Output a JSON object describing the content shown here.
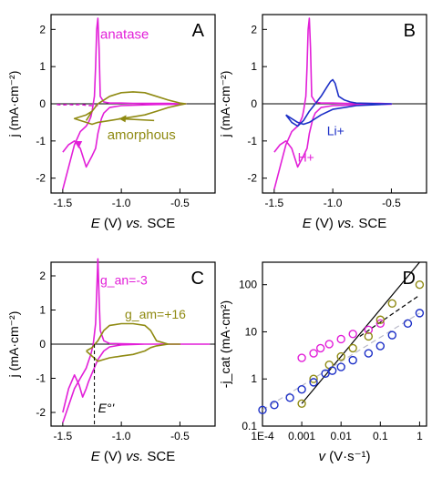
{
  "colors": {
    "anatase": "#e21fd8",
    "amorphous": "#8f8a12",
    "li": "#1c2fc7",
    "axis": "#000000",
    "zero": "#000000"
  },
  "chart_data": [
    {
      "id": "A",
      "type": "line",
      "panel_label": "A",
      "xlabel_parts": [
        "E",
        " (V) ",
        "vs.",
        " SCE"
      ],
      "ylabel": "j (mA·cm⁻²)",
      "xlim": [
        -1.6,
        -0.2
      ],
      "ylim": [
        -2.4,
        2.4
      ],
      "xticks": [
        -1.5,
        -1.0,
        -0.5
      ],
      "xtick_labels": [
        "-1.5",
        "-1.0",
        "-0.5"
      ],
      "yticks": [
        -2,
        -1,
        0,
        1,
        2
      ],
      "ytick_labels": [
        "-2",
        "-1",
        "0",
        "1",
        "2"
      ],
      "annotations": [
        "anatase",
        "amorphous"
      ],
      "series": [
        {
          "color": "anatase",
          "x": [
            -1.5,
            -1.45,
            -1.4,
            -1.35,
            -1.3,
            -1.28,
            -1.26,
            -1.25,
            -1.23,
            -1.22,
            -1.21,
            -1.2,
            -1.19,
            -1.18,
            -1.15,
            -1.1,
            -1.0,
            -0.9,
            -0.8,
            -0.7,
            -0.6,
            -0.5,
            -0.45,
            -0.5,
            -0.7,
            -1.0,
            -1.1,
            -1.15,
            -1.17,
            -1.2,
            -1.22,
            -1.25,
            -1.3,
            -1.35,
            -1.4,
            -1.45,
            -1.5
          ],
          "y": [
            -2.3,
            -1.7,
            -1.1,
            -0.75,
            -0.6,
            -0.5,
            -0.35,
            -0.2,
            0.2,
            1.0,
            2.0,
            2.3,
            1.5,
            0.2,
            0.05,
            0.02,
            0.02,
            0.01,
            0.01,
            0.01,
            0.01,
            0.0,
            0.0,
            -0.01,
            -0.02,
            -0.05,
            -0.1,
            -0.25,
            -0.4,
            -0.8,
            -1.2,
            -1.4,
            -1.7,
            -1.2,
            -1.0,
            -1.1,
            -1.3
          ]
        },
        {
          "color": "anatase",
          "dashed": true,
          "x": [
            -1.55,
            -1.5,
            -1.45,
            -1.4,
            -1.35,
            -1.3,
            -1.25,
            -1.2
          ],
          "y": [
            -0.02,
            -0.03,
            -0.02,
            -0.03,
            -0.02,
            -0.04,
            -0.05,
            -0.05
          ]
        },
        {
          "color": "amorphous",
          "x": [
            -1.3,
            -1.25,
            -1.2,
            -1.15,
            -1.1,
            -1.0,
            -0.9,
            -0.8,
            -0.7,
            -0.6,
            -0.5,
            -0.45,
            -0.5,
            -0.6,
            -0.7,
            -0.8,
            -0.9,
            -1.0,
            -1.1,
            -1.2,
            -1.25,
            -1.3,
            -1.35,
            -1.4,
            -1.3,
            -1.25,
            -1.3
          ],
          "y": [
            -0.45,
            -0.2,
            0.0,
            0.1,
            0.2,
            0.3,
            0.32,
            0.3,
            0.2,
            0.1,
            0.02,
            0.0,
            -0.03,
            -0.1,
            -0.2,
            -0.3,
            -0.35,
            -0.4,
            -0.45,
            -0.5,
            -0.55,
            -0.5,
            -0.45,
            -0.4,
            -0.3,
            -0.2,
            -0.45
          ]
        }
      ]
    },
    {
      "id": "B",
      "type": "line",
      "panel_label": "B",
      "xlabel_parts": [
        "E",
        " (V) ",
        "vs.",
        " SCE"
      ],
      "ylabel": "j (mA·cm⁻²)",
      "xlim": [
        -1.6,
        -0.2
      ],
      "ylim": [
        -2.4,
        2.4
      ],
      "xticks": [
        -1.5,
        -1.0,
        -0.5
      ],
      "xtick_labels": [
        "-1.5",
        "-1.0",
        "-0.5"
      ],
      "yticks": [
        -2,
        -1,
        0,
        1,
        2
      ],
      "ytick_labels": [
        "-2",
        "-1",
        "0",
        "1",
        "2"
      ],
      "annotations": [
        "Li+",
        "H+"
      ],
      "series": [
        {
          "color": "anatase",
          "x": [
            -1.5,
            -1.45,
            -1.4,
            -1.35,
            -1.3,
            -1.28,
            -1.26,
            -1.25,
            -1.23,
            -1.22,
            -1.21,
            -1.2,
            -1.19,
            -1.18,
            -1.15,
            -1.1,
            -1.0,
            -0.9,
            -0.8,
            -0.7,
            -0.6,
            -0.5,
            -0.5,
            -0.7,
            -1.0,
            -1.1,
            -1.15,
            -1.17,
            -1.2,
            -1.22,
            -1.25,
            -1.3,
            -1.35,
            -1.4,
            -1.45,
            -1.5
          ],
          "y": [
            -2.3,
            -1.7,
            -1.1,
            -0.75,
            -0.6,
            -0.5,
            -0.35,
            -0.2,
            0.2,
            1.0,
            2.0,
            2.3,
            1.5,
            0.2,
            0.05,
            0.02,
            0.02,
            0.01,
            0.01,
            0.01,
            0.01,
            0.0,
            -0.01,
            -0.02,
            -0.05,
            -0.1,
            -0.25,
            -0.4,
            -0.8,
            -1.2,
            -1.4,
            -1.7,
            -1.2,
            -1.0,
            -1.1,
            -1.3
          ]
        },
        {
          "color": "li",
          "x": [
            -1.4,
            -1.35,
            -1.3,
            -1.25,
            -1.2,
            -1.15,
            -1.1,
            -1.05,
            -1.02,
            -1.0,
            -0.98,
            -0.95,
            -0.9,
            -0.85,
            -0.8,
            -0.7,
            -0.6,
            -0.5,
            -0.6,
            -0.8,
            -1.0,
            -1.1,
            -1.2,
            -1.25,
            -1.3,
            -1.35,
            -1.4
          ],
          "y": [
            -0.3,
            -0.5,
            -0.6,
            -0.45,
            -0.2,
            0.0,
            0.2,
            0.45,
            0.6,
            0.65,
            0.55,
            0.2,
            0.1,
            0.05,
            0.02,
            0.01,
            0.0,
            0.0,
            -0.02,
            -0.05,
            -0.15,
            -0.3,
            -0.5,
            -0.55,
            -0.5,
            -0.4,
            -0.3
          ]
        }
      ]
    },
    {
      "id": "C",
      "type": "line",
      "panel_label": "C",
      "xlabel_parts": [
        "E",
        " (V) ",
        "vs.",
        " SCE"
      ],
      "ylabel": "j (mA·cm⁻²)",
      "xlim": [
        -1.6,
        -0.2
      ],
      "ylim": [
        -2.4,
        2.4
      ],
      "xticks": [
        -1.5,
        -1.0,
        -0.5
      ],
      "xtick_labels": [
        "-1.5",
        "-1.0",
        "-0.5"
      ],
      "yticks": [
        -2,
        -1,
        0,
        1,
        2
      ],
      "ytick_labels": [
        "-2",
        "-1",
        "0",
        "1",
        "2"
      ],
      "annotations": [
        "g_an=-3",
        "g_am=+16",
        "E°'"
      ],
      "series": [
        {
          "color": "anatase",
          "x": [
            -1.5,
            -1.45,
            -1.4,
            -1.35,
            -1.3,
            -1.28,
            -1.26,
            -1.24,
            -1.22,
            -1.21,
            -1.2,
            -1.19,
            -1.18,
            -1.15,
            -1.1,
            -1.0,
            -0.8,
            -0.6,
            -0.4,
            -0.25,
            -0.4,
            -0.6,
            -0.8,
            -1.0,
            -1.1,
            -1.15,
            -1.2,
            -1.25,
            -1.28,
            -1.3,
            -1.33,
            -1.36,
            -1.4,
            -1.45,
            -1.5
          ],
          "y": [
            -2.3,
            -1.8,
            -1.3,
            -1.0,
            -0.7,
            -0.5,
            -0.3,
            0.0,
            0.6,
            1.5,
            2.5,
            1.4,
            0.4,
            0.1,
            0.02,
            0.01,
            0.0,
            0.0,
            0.0,
            0.0,
            0.0,
            0.0,
            0.0,
            -0.02,
            -0.08,
            -0.2,
            -0.45,
            -0.85,
            -1.1,
            -1.3,
            -1.55,
            -1.2,
            -0.9,
            -1.3,
            -2.0
          ]
        },
        {
          "color": "amorphous",
          "x": [
            -1.3,
            -1.25,
            -1.2,
            -1.15,
            -1.1,
            -1.0,
            -0.9,
            -0.8,
            -0.75,
            -0.7,
            -0.6,
            -0.5,
            -0.6,
            -0.7,
            -0.75,
            -0.8,
            -0.9,
            -1.0,
            -1.1,
            -1.15,
            -1.2,
            -1.25,
            -1.3
          ],
          "y": [
            -0.2,
            -0.1,
            0.1,
            0.4,
            0.55,
            0.6,
            0.6,
            0.55,
            0.4,
            0.1,
            0.0,
            0.0,
            0.0,
            -0.05,
            -0.1,
            -0.2,
            -0.3,
            -0.35,
            -0.4,
            -0.45,
            -0.5,
            -0.35,
            -0.2
          ]
        }
      ],
      "vline_x": -1.23
    },
    {
      "id": "D",
      "type": "scatter",
      "panel_label": "D",
      "xlabel_parts": [
        "v",
        " (V·s⁻¹)"
      ],
      "ylabel": "-j_cat (mA·cm²)",
      "xscale": "log",
      "yscale": "log",
      "xlim": [
        0.0001,
        1.5
      ],
      "ylim": [
        0.1,
        300
      ],
      "xticks": [
        0.0001,
        0.001,
        0.01,
        0.1,
        1
      ],
      "xtick_labels": [
        "1E-4",
        "0.001",
        "0.01",
        "0.1",
        "1"
      ],
      "yticks": [
        0.1,
        1,
        10,
        100
      ],
      "ytick_labels": [
        "0.1",
        "1",
        "10",
        "100"
      ],
      "series": [
        {
          "color": "anatase",
          "x": [
            0.001,
            0.002,
            0.003,
            0.005,
            0.01,
            0.02,
            0.05,
            0.1
          ],
          "y": [
            2.8,
            3.5,
            4.5,
            5.5,
            7,
            9,
            11,
            15
          ]
        },
        {
          "color": "amorphous",
          "x": [
            0.001,
            0.002,
            0.005,
            0.01,
            0.02,
            0.05,
            0.1,
            0.2,
            1.0
          ],
          "y": [
            0.3,
            1.0,
            2.0,
            3.0,
            4.5,
            8.0,
            18.0,
            40.0,
            100.0
          ]
        },
        {
          "color": "li",
          "x": [
            0.0001,
            0.0002,
            0.0005,
            0.001,
            0.002,
            0.004,
            0.006,
            0.01,
            0.02,
            0.05,
            0.1,
            0.2,
            0.5,
            1.0
          ],
          "y": [
            0.22,
            0.28,
            0.4,
            0.6,
            0.85,
            1.3,
            1.5,
            1.8,
            2.5,
            3.5,
            5,
            8.5,
            15,
            25
          ]
        }
      ],
      "fits": [
        {
          "color": "axis",
          "dash": "",
          "x": [
            0.001,
            1.0
          ],
          "y": [
            0.3,
            300
          ]
        },
        {
          "color": "axis",
          "dash": "5,3",
          "x": [
            0.03,
            1.0
          ],
          "y": [
            8,
            60
          ]
        },
        {
          "color": "gray",
          "dash": "6,4",
          "x": [
            0.0001,
            1.0
          ],
          "y": [
            0.22,
            25
          ]
        }
      ]
    }
  ]
}
